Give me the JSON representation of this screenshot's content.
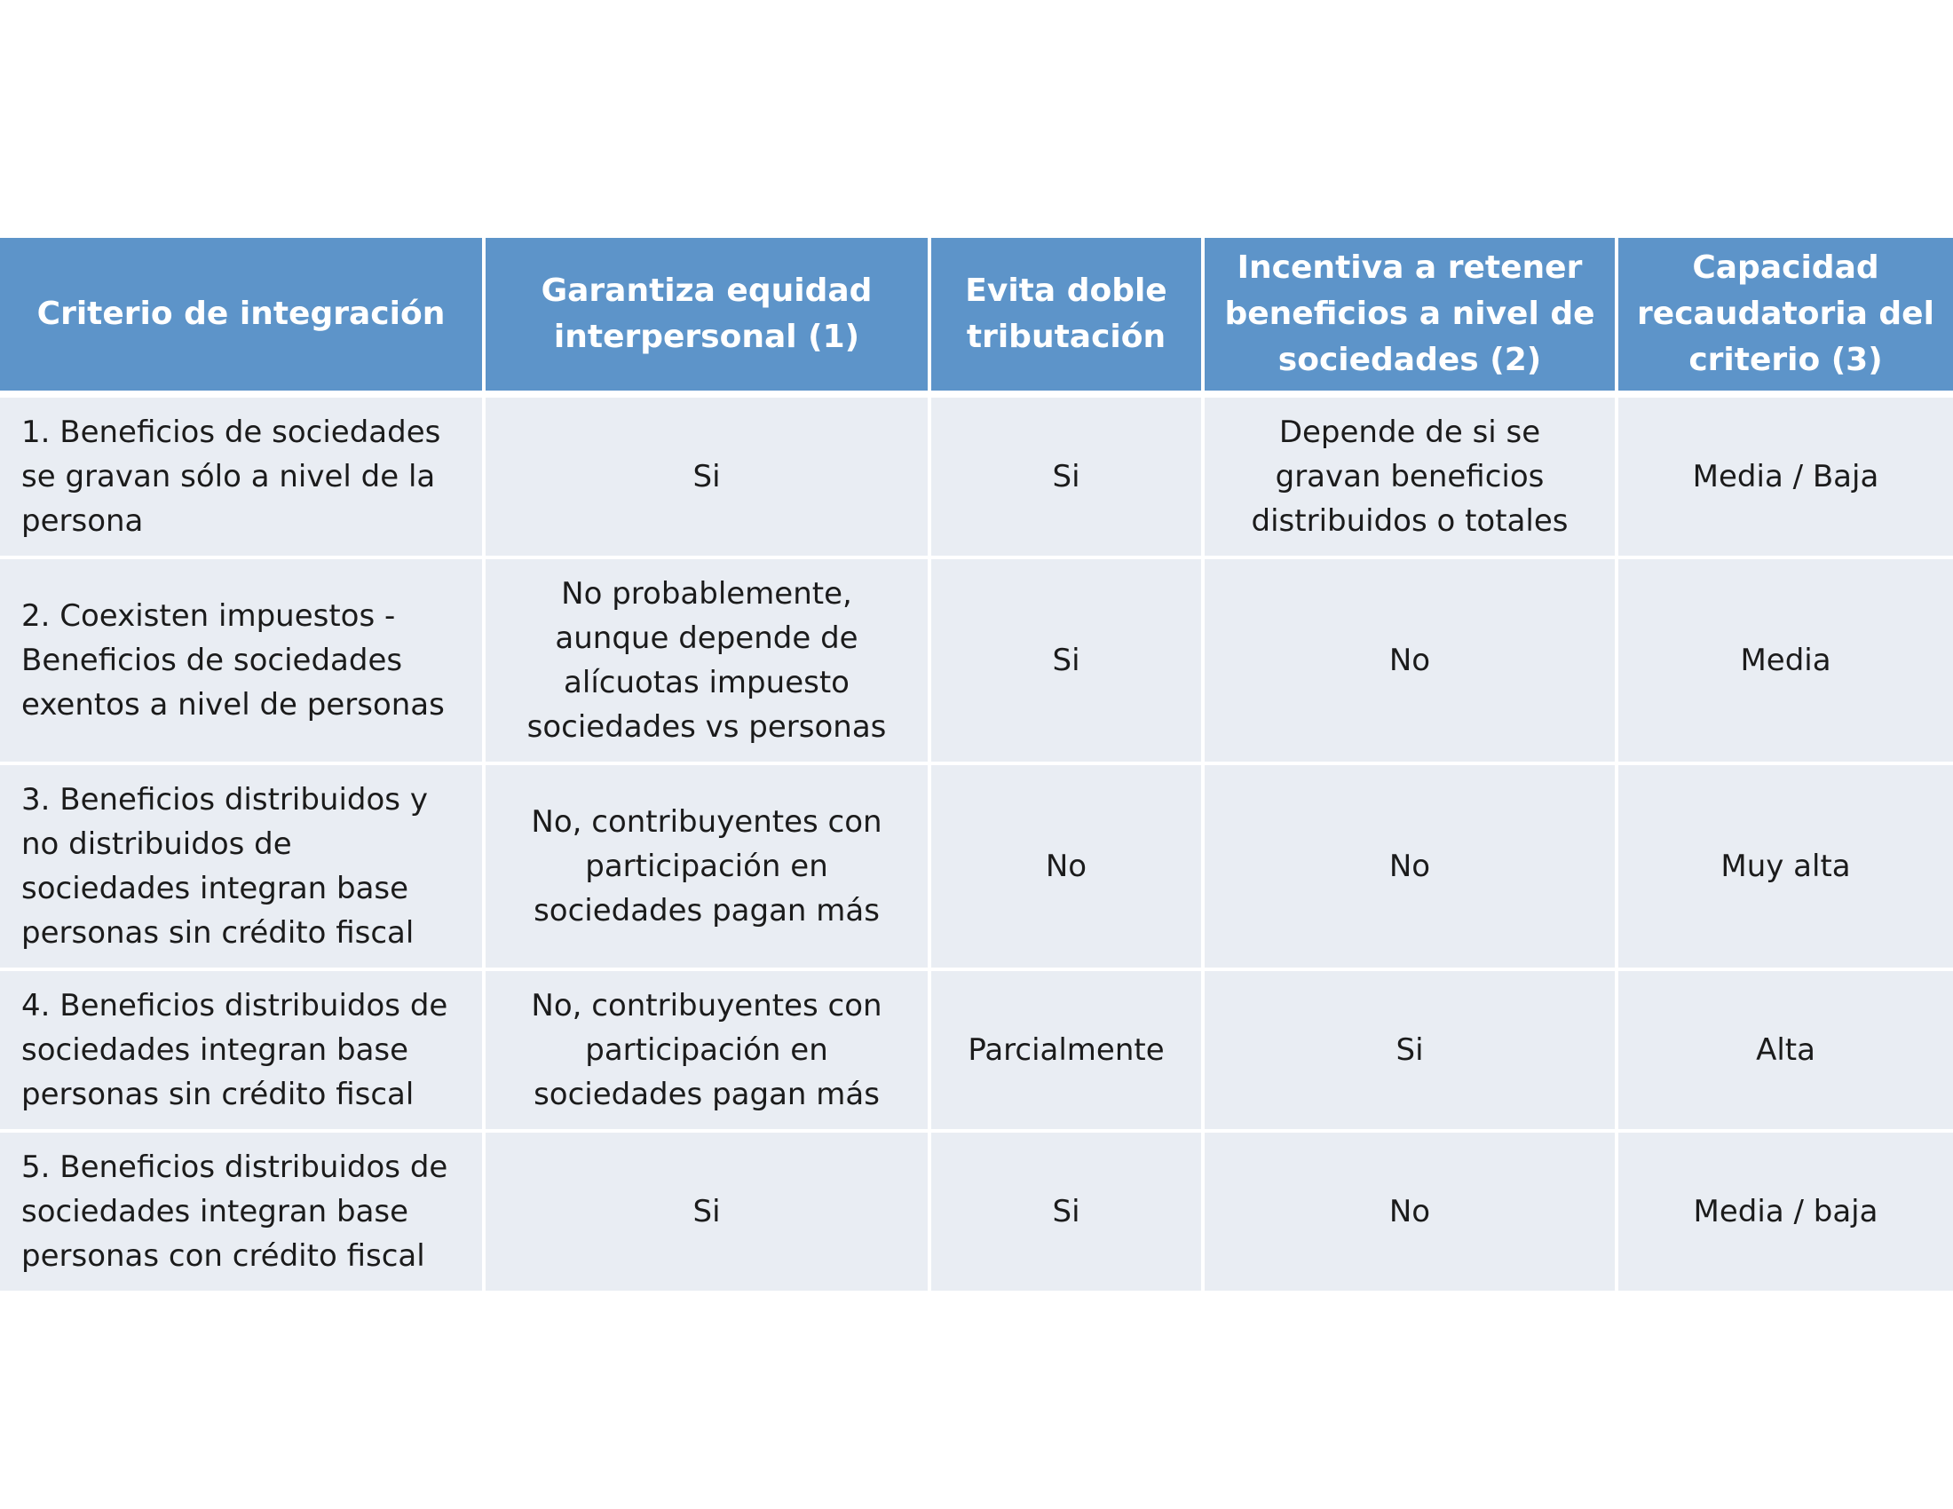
{
  "table": {
    "headers": [
      "Criterio de integración",
      "Garantiza equidad interpersonal (1)",
      "Evita doble tributación",
      "Incentiva a retener beneficios a nivel de sociedades (2)",
      "Capacidad recaudatoria del criterio (3)"
    ],
    "rows": [
      [
        "1. Beneficios de sociedades se gravan sólo a nivel de la persona",
        "Si",
        "Si",
        "Depende de si se gravan beneficios distribuidos o totales",
        "Media / Baja"
      ],
      [
        "2. Coexisten impuestos - Beneficios de sociedades exentos a nivel de personas",
        "No probablemente, aunque depende de alícuotas impuesto sociedades vs personas",
        "Si",
        "No",
        "Media"
      ],
      [
        "3. Beneficios distribuidos y no distribuidos de sociedades integran base personas sin crédito fiscal",
        "No, contribuyentes con participación en sociedades pagan más",
        "No",
        "No",
        "Muy alta"
      ],
      [
        "4. Beneficios distribuidos de sociedades integran base personas sin crédito fiscal",
        "No, contribuyentes con participación en sociedades pagan más",
        "Parcialmente",
        "Si",
        "Alta"
      ],
      [
        "5. Beneficios distribuidos de sociedades integran base personas con crédito fiscal",
        "Si",
        "Si",
        "No",
        "Media / baja"
      ]
    ]
  },
  "colors": {
    "header_background": "#5d94c9",
    "header_text": "#ffffff",
    "cell_background": "#e9edf3",
    "cell_text": "#1b1b1b",
    "separator": "#ffffff"
  }
}
